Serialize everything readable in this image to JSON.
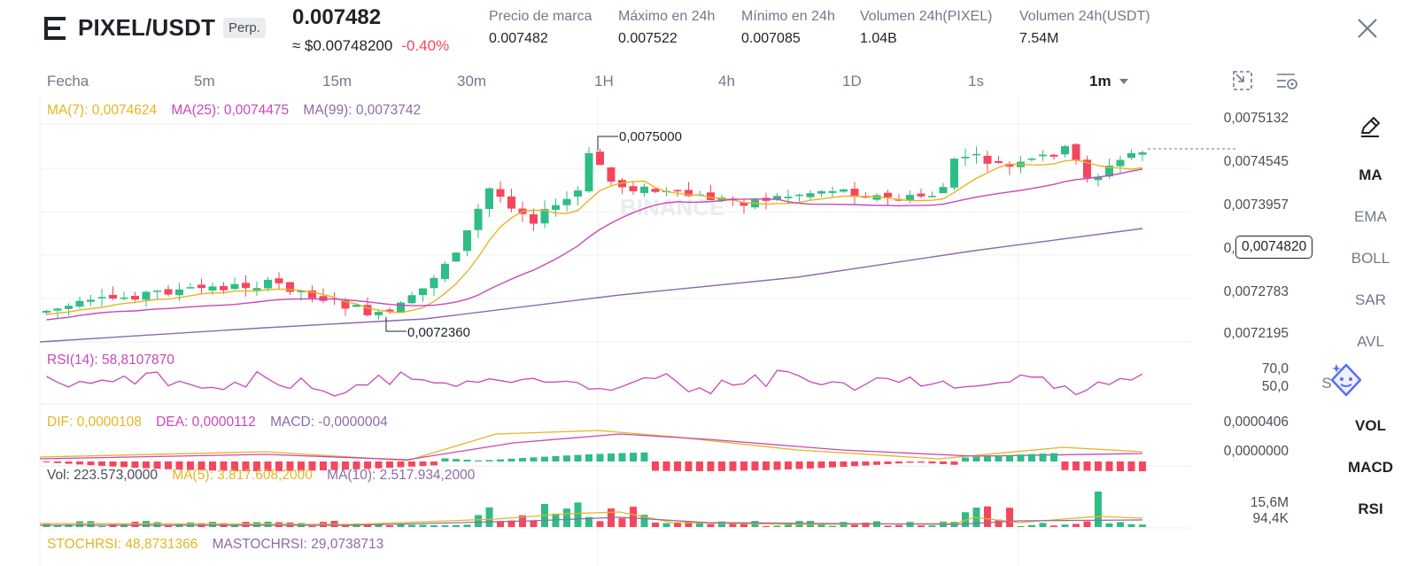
{
  "header": {
    "logo_icon": "binance-futures-logo-icon",
    "pair": "PIXEL/USDT",
    "contract_type": "Perp.",
    "last_price": "0.007482",
    "usd_price": "≈ $0.00748200",
    "change_pct": "-0.40%",
    "stats": [
      {
        "label": "Precio de marca",
        "value": "0.007482"
      },
      {
        "label": "Máximo en 24h",
        "value": "0.007522"
      },
      {
        "label": "Mínimo en 24h",
        "value": "0.007085"
      },
      {
        "label": "Volumen 24h(PIXEL)",
        "value": "1.04B"
      },
      {
        "label": "Volumen 24h(USDT)",
        "value": "7.54M"
      }
    ],
    "close_icon": "close-icon"
  },
  "timeframes": {
    "date_label": "Fecha",
    "items": [
      "5m",
      "15m",
      "30m",
      "1H",
      "4h",
      "1D",
      "1s",
      "1m"
    ],
    "active": "1m",
    "icons": [
      "expand-icon",
      "chart-settings-icon"
    ]
  },
  "indicators": {
    "ma7": "MA(7): 0,0074624",
    "ma25": "MA(25): 0,0074475",
    "ma99": "MA(99): 0,0073742",
    "rsi": "RSI(14): 58,8107870",
    "dif": "DIF: 0,0000108",
    "dea": "DEA: 0,0000112",
    "macd": "MACD: -0,0000004",
    "vol": "Vol: 223.573,0000",
    "vol_ma5": "MA(5): 3.817.608,2000",
    "vol_ma10": "MA(10): 2.517.934,2000",
    "stochrsi": "STOCHRSI: 48,8731366",
    "mastochrsi": "MASTOCHRSI: 29,0738713"
  },
  "axes": {
    "price_ticks": [
      "0,0075132",
      "0,0074545",
      "0,0073957",
      "0,0073370",
      "0,0072783",
      "0,0072195"
    ],
    "current_price_tag": "0,0074820",
    "high_marker": "0,0075000",
    "low_marker": "0,0072360",
    "rsi_ticks": [
      "70,0",
      "50,0"
    ],
    "macd_ticks": [
      "0,0000406",
      "0,0000000"
    ],
    "vol_ticks": [
      "15,6M",
      "94,4K"
    ],
    "watermark": "BINANCE"
  },
  "colors": {
    "up": "#2ebd85",
    "down": "#f6465d",
    "ma7": "#e6b422",
    "ma25": "#c848b9",
    "ma99": "#8d6aa8",
    "text": "#1e2329",
    "muted": "#707a8a"
  },
  "sidebar": {
    "draw_icon": "pencil-draw-icon",
    "items": [
      {
        "label": "MA",
        "active": true
      },
      {
        "label": "EMA",
        "active": false
      },
      {
        "label": "BOLL",
        "active": false
      },
      {
        "label": "SAR",
        "active": false
      },
      {
        "label": "AVL",
        "active": false
      },
      {
        "label": "VOL",
        "active": true
      },
      {
        "label": "MACD",
        "active": true
      },
      {
        "label": "RSI",
        "active": true
      }
    ],
    "partial_item": "S",
    "assistant_icon": "ai-assistant-icon"
  }
}
